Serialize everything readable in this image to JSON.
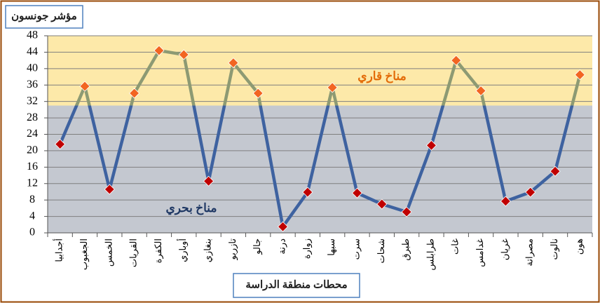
{
  "chart_data": {
    "type": "line",
    "title": "مؤشر جونسون",
    "x_label": "محطات منطقة الدراسة",
    "categories": [
      "أجدابيا",
      "الجغبوب",
      "الخمس",
      "القريات",
      "الكفرة",
      "أوباري",
      "بنغازي",
      "تازربو",
      "جالو",
      "درنة",
      "زوارة",
      "سبها",
      "سرت",
      "شحات",
      "طبرق",
      "طرابلس",
      "غات",
      "غدامس",
      "غريان",
      "مصراتة",
      "نالوت",
      "هون"
    ],
    "values": [
      21.6,
      35.7,
      10.6,
      34,
      44.4,
      43.4,
      12.6,
      41.4,
      34,
      1.5,
      9.9,
      35.4,
      9.7,
      7,
      5.1,
      21.3,
      42,
      34.6,
      7.7,
      9.9,
      15,
      38.5
    ],
    "ylim": [
      0,
      48
    ],
    "yticks": [
      0,
      4,
      8,
      12,
      16,
      20,
      24,
      28,
      32,
      36,
      40,
      44,
      48
    ],
    "grid": true,
    "bands": [
      {
        "from": 0,
        "to": 31,
        "color": "#c4c8d0",
        "line_color": "#3e62a0",
        "marker_color": "#c00000",
        "label": "مناخ بحري",
        "label_color": "#1f3864"
      },
      {
        "from": 31,
        "to": 48,
        "color": "#fde9a9",
        "line_color": "#8d9a73",
        "marker_color": "#f26522",
        "label": "مناخ قاري",
        "label_color": "#e36c09"
      }
    ]
  }
}
